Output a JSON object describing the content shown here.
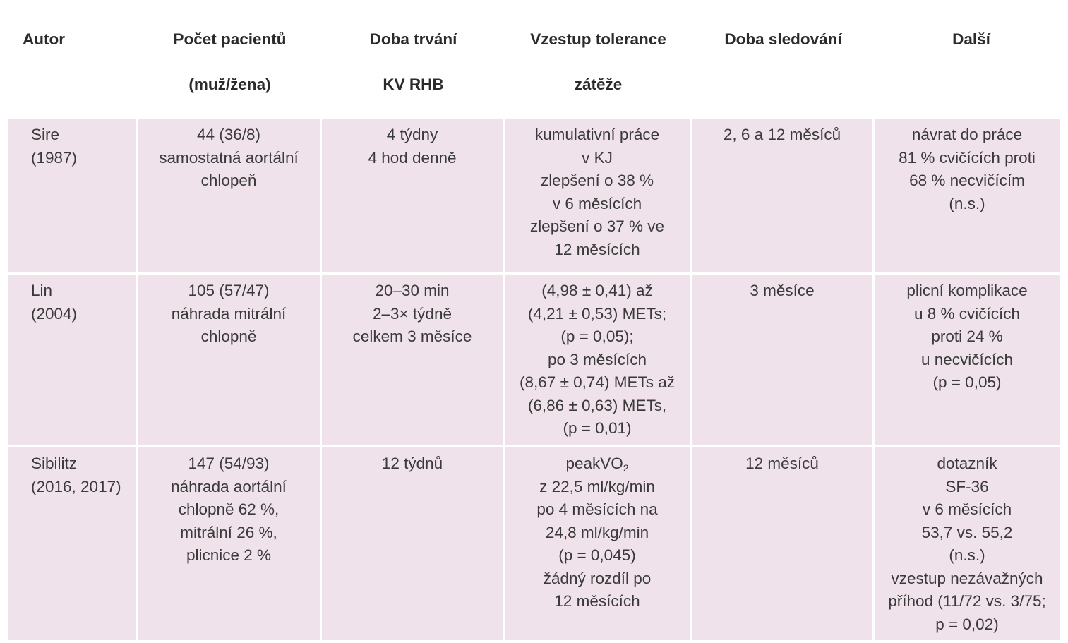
{
  "table": {
    "headers": [
      [
        "Autor"
      ],
      [
        "Počet pacientů",
        "(muž/žena)"
      ],
      [
        "Doba trvání",
        "KV RHB"
      ],
      [
        "Vzestup tolerance",
        "zátěže"
      ],
      [
        "Doba sledování"
      ],
      [
        "Další"
      ]
    ],
    "rows": [
      {
        "autor": [
          "Sire",
          "(1987)"
        ],
        "pocet": [
          "44 (36/8)",
          "samostatná aortální",
          "chlopeň"
        ],
        "doba": [
          "4 týdny",
          "4 hod denně"
        ],
        "vzestup": [
          "kumulativní práce",
          "v KJ",
          "zlepšení o 38 %",
          "v 6 měsících",
          "zlepšení o 37 % ve",
          "12 měsících"
        ],
        "sledovani": [
          "2, 6 a 12 měsíců"
        ],
        "dalsi": [
          "návrat do práce",
          "81 % cvičících proti",
          "68 % necvičícím",
          "(n.s.)"
        ]
      },
      {
        "autor": [
          "Lin",
          "(2004)"
        ],
        "pocet": [
          "105 (57/47)",
          "náhrada mitrální",
          "chlopně"
        ],
        "doba": [
          "20–30 min",
          "2–3× týdně",
          "celkem 3 měsíce"
        ],
        "vzestup": [
          "(4,98 ± 0,41) až",
          "(4,21 ± 0,53) METs;",
          "(p = 0,05);",
          "po 3 měsících",
          "(8,67 ± 0,74) METs až",
          "(6,86 ± 0,63) METs,",
          "(p = 0,01)"
        ],
        "sledovani": [
          "3 měsíce"
        ],
        "dalsi": [
          "plicní komplikace",
          "u 8 % cvičících",
          "proti 24 %",
          "u necvičících",
          "(p = 0,05)"
        ]
      },
      {
        "autor": [
          "Sibilitz",
          "(2016, 2017)"
        ],
        "pocet": [
          "147 (54/93)",
          "náhrada aortální",
          "chlopně 62 %,",
          "mitrální 26 %,",
          "plicnice 2 %"
        ],
        "doba": [
          "12 týdnů"
        ],
        "vzestup_first": "peakVO",
        "vzestup_first_sub": "2",
        "vzestup": [
          "z 22,5 ml/kg/min",
          "po 4 měsících na",
          "24,8 ml/kg/min",
          "(p = 0,045)",
          "žádný rozdíl po",
          "12 měsících"
        ],
        "sledovani": [
          "12 měsíců"
        ],
        "dalsi": [
          "dotazník",
          "SF-36",
          "v 6 měsících",
          "53,7 vs. 55,2",
          "(n.s.)",
          "vzestup nezávažných",
          "příhod (11/72 vs. 3/75;",
          "p = 0,02)"
        ]
      }
    ]
  }
}
